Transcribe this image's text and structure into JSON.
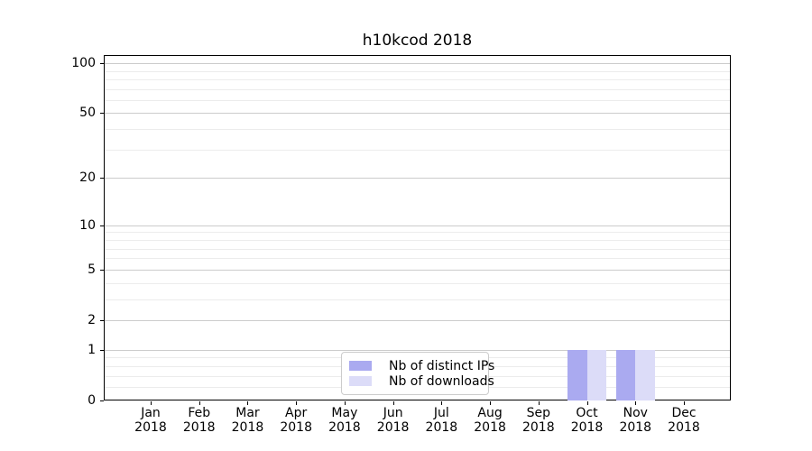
{
  "figure": {
    "title": "h10kcod 2018"
  },
  "chart_data": {
    "type": "bar",
    "title": "h10kcod 2018",
    "categories": [
      {
        "line1": "Jan",
        "line2": "2018"
      },
      {
        "line1": "Feb",
        "line2": "2018"
      },
      {
        "line1": "Mar",
        "line2": "2018"
      },
      {
        "line1": "Apr",
        "line2": "2018"
      },
      {
        "line1": "May",
        "line2": "2018"
      },
      {
        "line1": "Jun",
        "line2": "2018"
      },
      {
        "line1": "Jul",
        "line2": "2018"
      },
      {
        "line1": "Aug",
        "line2": "2018"
      },
      {
        "line1": "Sep",
        "line2": "2018"
      },
      {
        "line1": "Oct",
        "line2": "2018"
      },
      {
        "line1": "Nov",
        "line2": "2018"
      },
      {
        "line1": "Dec",
        "line2": "2018"
      }
    ],
    "series": [
      {
        "name": "Nb of distinct IPs",
        "color": "#aaaaf0",
        "values": [
          0,
          0,
          0,
          0,
          0,
          0,
          0,
          0,
          0,
          1,
          1,
          0
        ]
      },
      {
        "name": "Nb of downloads",
        "color": "#dcdcf8",
        "values": [
          0,
          0,
          0,
          0,
          0,
          0,
          0,
          0,
          0,
          1,
          1,
          0
        ]
      }
    ],
    "xlabel": "",
    "ylabel": "",
    "yscale": "log1p",
    "ylim": [
      0,
      112
    ],
    "yticks": [
      0,
      1,
      2,
      5,
      10,
      20,
      50,
      100
    ],
    "minor_yticks": [
      0.2,
      0.4,
      0.6,
      0.8,
      3,
      4,
      6,
      7,
      8,
      9,
      30,
      40,
      60,
      70,
      80,
      90
    ],
    "grid": "horizontal-major-and-minor",
    "legend_position": "lower-center"
  },
  "colors": {
    "axis": "#000000",
    "major_grid": "#cccccc",
    "minor_grid": "#ececec",
    "background": "#ffffff",
    "bar_distinct_ips": "#aaaaf0",
    "bar_downloads": "#dcdcf8"
  }
}
